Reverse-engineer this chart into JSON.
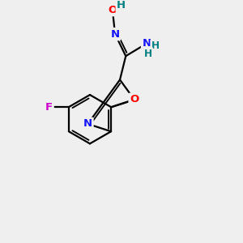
{
  "bg_color": "#efefef",
  "bond_color": "#000000",
  "bond_width": 1.6,
  "atom_colors": {
    "C": "#000000",
    "N": "#1414ff",
    "O": "#ff0000",
    "F": "#cc00cc",
    "H": "#008080"
  },
  "font_size": 9.5,
  "bold": true
}
